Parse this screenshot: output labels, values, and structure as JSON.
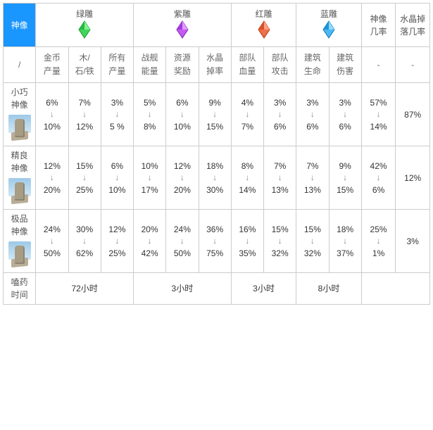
{
  "colors": {
    "header_bg": "#1a96ff",
    "header_fg": "#ffffff",
    "border": "#cccccc",
    "text": "#333333",
    "subtext": "#666666",
    "arrow": "#888888",
    "gem_green": "#3fd65b",
    "gem_green_dark": "#179a2a",
    "gem_purple": "#c45af2",
    "gem_purple_dark": "#7a1fb0",
    "gem_red": "#f07048",
    "gem_red_dark": "#b03412",
    "gem_blue": "#4ab8f2",
    "gem_blue_dark": "#0f74b6"
  },
  "header": {
    "statue_col": "神像",
    "groups": [
      "绿雕",
      "紫雕",
      "红雕",
      "蓝雕"
    ],
    "statue_rate": "神像\n几率",
    "crystal_drop_rate": "水晶掉\n落几率",
    "slash": "/",
    "dash": "-"
  },
  "subcols": {
    "green": [
      "金币\n产量",
      "木/\n石/铁",
      "所有\n产量"
    ],
    "purple": [
      "战舰\n能量",
      "资源\n奖励",
      "水晶\n掉率"
    ],
    "red": [
      "部队\n血量",
      "部队\n攻击"
    ],
    "blue": [
      "建筑\n生命",
      "建筑\n伤害"
    ]
  },
  "tiers": [
    {
      "name": "小巧\n神像",
      "stats": [
        {
          "lo": "6%",
          "hi": "10%"
        },
        {
          "lo": "7%",
          "hi": "12%"
        },
        {
          "lo": "3%",
          "hi": "5 %"
        },
        {
          "lo": "5%",
          "hi": "8%"
        },
        {
          "lo": "6%",
          "hi": "10%"
        },
        {
          "lo": "9%",
          "hi": "15%"
        },
        {
          "lo": "4%",
          "hi": "7%"
        },
        {
          "lo": "3%",
          "hi": "6%"
        },
        {
          "lo": "3%",
          "hi": "6%"
        },
        {
          "lo": "3%",
          "hi": "6%"
        }
      ],
      "statue_rate": {
        "lo": "57%",
        "hi": "14%"
      },
      "drop_rate": "87%"
    },
    {
      "name": "精良\n神像",
      "stats": [
        {
          "lo": "12%",
          "hi": "20%"
        },
        {
          "lo": "15%",
          "hi": "25%"
        },
        {
          "lo": "6%",
          "hi": "10%"
        },
        {
          "lo": "10%",
          "hi": "17%"
        },
        {
          "lo": "12%",
          "hi": "20%"
        },
        {
          "lo": "18%",
          "hi": "30%"
        },
        {
          "lo": "8%",
          "hi": "14%"
        },
        {
          "lo": "7%",
          "hi": "13%"
        },
        {
          "lo": "7%",
          "hi": "13%"
        },
        {
          "lo": "9%",
          "hi": "15%"
        }
      ],
      "statue_rate": {
        "lo": "42%",
        "hi": "6%"
      },
      "drop_rate": "12%"
    },
    {
      "name": "极品\n神像",
      "stats": [
        {
          "lo": "24%",
          "hi": "50%"
        },
        {
          "lo": "30%",
          "hi": "62%"
        },
        {
          "lo": "12%",
          "hi": "25%"
        },
        {
          "lo": "20%",
          "hi": "42%"
        },
        {
          "lo": "24%",
          "hi": "50%"
        },
        {
          "lo": "36%",
          "hi": "75%"
        },
        {
          "lo": "16%",
          "hi": "35%"
        },
        {
          "lo": "15%",
          "hi": "32%"
        },
        {
          "lo": "15%",
          "hi": "32%"
        },
        {
          "lo": "18%",
          "hi": "37%"
        }
      ],
      "statue_rate": {
        "lo": "25%",
        "hi": "1%"
      },
      "drop_rate": "3%"
    }
  ],
  "footer": {
    "label": "嗑药\n时间",
    "times": [
      "72小时",
      "3小时",
      "3小时",
      "8小时"
    ]
  },
  "icons": {
    "arrow_down": "↓"
  }
}
